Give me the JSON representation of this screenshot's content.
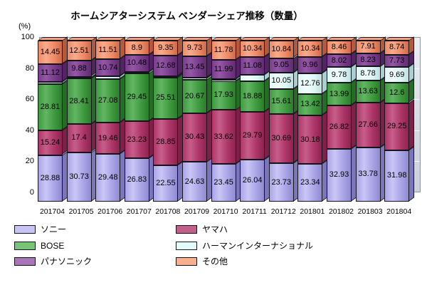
{
  "title": "ホームシアターシステム ベンダーシェア推移（数量）",
  "y_axis": {
    "unit_label": "(%)",
    "ticks": [
      "100",
      "80",
      "60",
      "40",
      "20",
      "0"
    ]
  },
  "chart_data": {
    "type": "bar",
    "subtype": "3d-stacked-column-percent",
    "title": "ホームシアターシステム ベンダーシェア推移（数量）",
    "xlabel": "",
    "ylabel": "(%)",
    "ylim": [
      0,
      100
    ],
    "grid": true,
    "legend_position": "bottom",
    "categories": [
      "201704",
      "201705",
      "201706",
      "201707",
      "201708",
      "201709",
      "201710",
      "201711",
      "201712",
      "201801",
      "201802",
      "201803",
      "201804"
    ],
    "stack_order_bottom_to_top": [
      "ソニー",
      "ヤマハ",
      "BOSE",
      "ハーマンインターナショナル",
      "パナソニック",
      "その他"
    ],
    "series": [
      {
        "name": "ソニー",
        "values": [
          28.88,
          30.73,
          29.48,
          26.83,
          22.55,
          24.63,
          23.45,
          26.04,
          23.73,
          23.34,
          32.93,
          33.78,
          31.98
        ],
        "labels": [
          "28.88",
          "30.73",
          "29.48",
          "26.83",
          "22.55",
          "24.63",
          "23.45",
          "26.04",
          "23.73",
          "23.34",
          "32.93",
          "33.78",
          "31.98"
        ],
        "front_mid": "#aaa5e6",
        "front_light": "#cac6f5",
        "front_dark": "#8f8ad0",
        "side": "#7b76bb"
      },
      {
        "name": "ヤマハ",
        "values": [
          15.24,
          17.4,
          19.46,
          23.23,
          28.85,
          30.43,
          33.62,
          29.79,
          30.69,
          30.18,
          26.82,
          27.66,
          29.25
        ],
        "labels": [
          "15.24",
          "17.4",
          "19.46",
          "23.23",
          "28.85",
          "30.43",
          "33.62",
          "29.79",
          "30.69",
          "30.18",
          "26.82",
          "27.66",
          "29.25"
        ],
        "front_mid": "#ad3668",
        "front_light": "#c75e8a",
        "front_dark": "#8d2350",
        "side": "#7e2148"
      },
      {
        "name": "BOSE",
        "values": [
          28.81,
          28.41,
          27.08,
          29.45,
          25.51,
          20.67,
          17.93,
          18.88,
          15.61,
          13.42,
          13.99,
          13.63,
          12.6
        ],
        "labels": [
          "28.81",
          "28.41",
          "27.08",
          "29.45",
          "25.51",
          "20.67",
          "17.93",
          "18.88",
          "15.61",
          "13.42",
          "13.99",
          "13.63",
          "12.6"
        ],
        "front_mid": "#3f9a3f",
        "front_light": "#63b563",
        "front_dark": "#2b7d2b",
        "side": "#256d25"
      },
      {
        "name": "ハーマンインターナショナル",
        "values": [
          1.5,
          1.06,
          1.72,
          1.11,
          1.06,
          1.09,
          1.23,
          3.87,
          10.05,
          12.76,
          9.78,
          8.78,
          9.69
        ],
        "labels": [
          "",
          "",
          "",
          "",
          "",
          "",
          "",
          "",
          "10.05",
          "12.76",
          "9.78",
          "8.78",
          "9.69"
        ],
        "front_mid": "#def6f6",
        "front_light": "#f2fdfd",
        "front_dark": "#bfdfe1",
        "side": "#a9cfd1"
      },
      {
        "name": "パナソニック",
        "values": [
          11.12,
          9.88,
          10.74,
          10.48,
          12.68,
          13.45,
          11.99,
          11.08,
          9.05,
          9.96,
          8.02,
          8.23,
          7.73
        ],
        "labels": [
          "11.12",
          "9.88",
          "10.74",
          "10.48",
          "12.68",
          "13.45",
          "11.99",
          "11.08",
          "9.05",
          "9.96",
          "8.02",
          "8.23",
          "7.73"
        ],
        "front_mid": "#7a3d8d",
        "front_light": "#9558a6",
        "front_dark": "#5f2b70",
        "side": "#532363"
      },
      {
        "name": "その他",
        "values": [
          14.45,
          12.51,
          11.51,
          8.9,
          9.35,
          9.73,
          11.78,
          10.34,
          10.84,
          10.34,
          8.46,
          7.91,
          8.74
        ],
        "labels": [
          "14.45",
          "12.51",
          "11.51",
          "8.9",
          "9.35",
          "9.73",
          "11.78",
          "10.34",
          "10.84",
          "10.34",
          "8.46",
          "7.91",
          "8.74"
        ],
        "front_mid": "#ee8a66",
        "front_light": "#f7ab8c",
        "front_dark": "#cf6a48",
        "side": "#b25a3c",
        "top": "#f4a084"
      }
    ]
  },
  "legend": {
    "columns": [
      [
        {
          "label": "ソニー",
          "color": "#c9c4f6"
        },
        {
          "label": "BOSE",
          "color": "#77c377"
        },
        {
          "label": "パナソニック",
          "color": "#a876b8"
        }
      ],
      [
        {
          "label": "ヤマハ",
          "color": "#c45e8a"
        },
        {
          "label": "ハーマンインターナショナル",
          "color": "#e2fafa"
        },
        {
          "label": "その他",
          "color": "#f8b18f"
        }
      ]
    ]
  }
}
